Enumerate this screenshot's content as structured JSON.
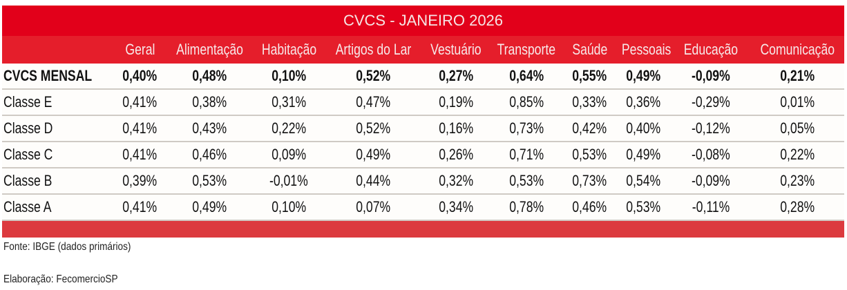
{
  "title": "CVCS - JANEIRO 2026",
  "columns": [
    "Geral",
    "Alimentação",
    "Habitação",
    "Artigos do Lar",
    "Vestuário",
    "Transporte",
    "Saúde",
    "Pessoais",
    "Educação",
    "Comunicação"
  ],
  "rows": [
    {
      "label": "CVCS MENSAL",
      "values": [
        "0,40%",
        "0,48%",
        "0,10%",
        "0,52%",
        "0,27%",
        "0,64%",
        "0,55%",
        "0,49%",
        "-0,09%",
        "0,21%"
      ]
    },
    {
      "label": "Classe E",
      "values": [
        "0,41%",
        "0,38%",
        "0,31%",
        "0,47%",
        "0,19%",
        "0,85%",
        "0,33%",
        "0,36%",
        "-0,29%",
        "0,01%"
      ]
    },
    {
      "label": "Classe D",
      "values": [
        "0,41%",
        "0,43%",
        "0,22%",
        "0,52%",
        "0,16%",
        "0,73%",
        "0,42%",
        "0,40%",
        "-0,12%",
        "0,05%"
      ]
    },
    {
      "label": "Classe C",
      "values": [
        "0,41%",
        "0,46%",
        "0,09%",
        "0,49%",
        "0,26%",
        "0,71%",
        "0,53%",
        "0,49%",
        "-0,08%",
        "0,22%"
      ]
    },
    {
      "label": "Classe B",
      "values": [
        "0,39%",
        "0,53%",
        "-0,01%",
        "0,44%",
        "0,32%",
        "0,53%",
        "0,73%",
        "0,54%",
        "-0,09%",
        "0,23%"
      ]
    },
    {
      "label": "Classe A",
      "values": [
        "0,41%",
        "0,49%",
        "0,10%",
        "0,07%",
        "0,34%",
        "0,78%",
        "0,46%",
        "0,53%",
        "-0,11%",
        "0,28%"
      ]
    }
  ],
  "footer": {
    "source": "Fonte: IBGE (dados primários)",
    "credit": "Elaboração: FecomercioSP"
  },
  "colors": {
    "title_bg": "#e2001a",
    "header_bg": "#e51e2b",
    "bottom_bar": "#dc3a3e"
  }
}
